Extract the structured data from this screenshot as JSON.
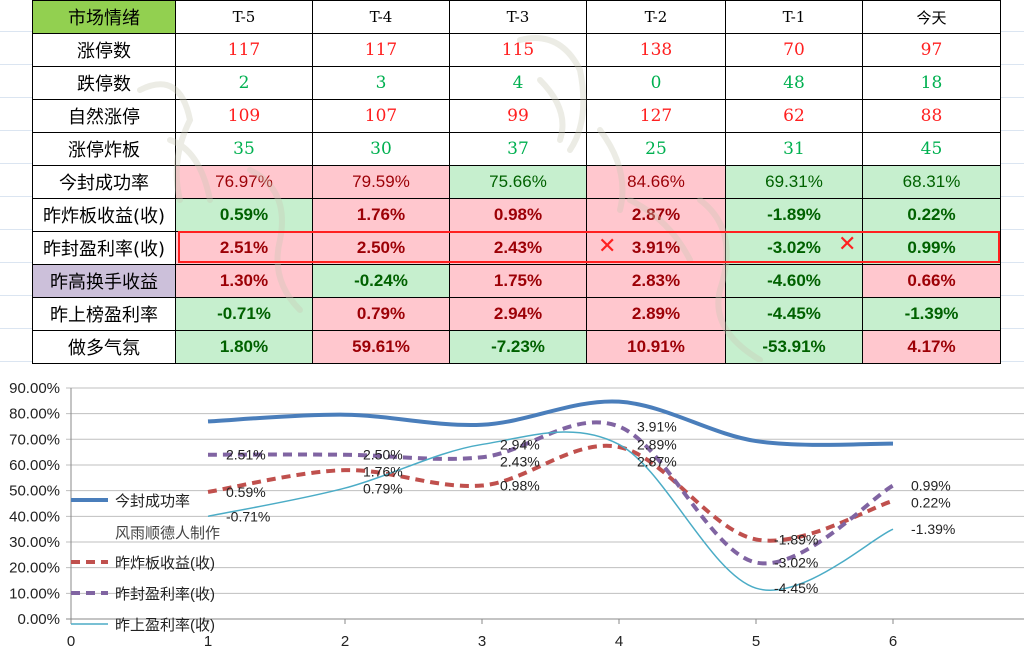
{
  "watermark": "风雨顺德人",
  "table": {
    "header": [
      "市场情绪",
      "T-5",
      "T-4",
      "T-3",
      "T-2",
      "T-1",
      "今天"
    ],
    "rows": [
      {
        "label": "涨停数",
        "style": "red",
        "values": [
          "117",
          "117",
          "115",
          "138",
          "70",
          "97"
        ]
      },
      {
        "label": "跌停数",
        "style": "grn",
        "values": [
          "2",
          "3",
          "4",
          "0",
          "48",
          "18"
        ]
      },
      {
        "label": "自然涨停",
        "style": "red",
        "values": [
          "109",
          "107",
          "99",
          "127",
          "62",
          "88"
        ]
      },
      {
        "label": "涨停炸板",
        "style": "grn",
        "values": [
          "35",
          "30",
          "37",
          "25",
          "31",
          "45"
        ]
      },
      {
        "label": "今封成功率",
        "bold": false,
        "values": [
          "76.97%",
          "79.59%",
          "75.66%",
          "84.66%",
          "69.31%",
          "68.31%"
        ],
        "colors": [
          "p",
          "p",
          "g",
          "p",
          "g",
          "g"
        ]
      },
      {
        "label": "昨炸板收益(收)",
        "values": [
          "0.59%",
          "1.76%",
          "0.98%",
          "2.87%",
          "-1.89%",
          "0.22%"
        ],
        "colors": [
          "g",
          "p",
          "p",
          "p",
          "g",
          "g"
        ]
      },
      {
        "label": "昨封盈利率(收)",
        "values": [
          "2.51%",
          "2.50%",
          "2.43%",
          "3.91%",
          "-3.02%",
          "0.99%"
        ],
        "colors": [
          "p",
          "p",
          "p",
          "p",
          "g",
          "g"
        ]
      },
      {
        "label": "昨高换手收益",
        "label_bg": "#ccc0da",
        "values": [
          "1.30%",
          "-0.24%",
          "1.75%",
          "2.83%",
          "-4.60%",
          "0.66%"
        ],
        "colors": [
          "p",
          "g",
          "p",
          "p",
          "g",
          "p"
        ]
      },
      {
        "label": "昨上榜盈利率",
        "values": [
          "-0.71%",
          "0.79%",
          "2.94%",
          "2.89%",
          "-4.45%",
          "-1.39%"
        ],
        "colors": [
          "g",
          "p",
          "p",
          "p",
          "g",
          "g"
        ]
      },
      {
        "label": "做多气氛",
        "values": [
          "1.80%",
          "59.61%",
          "-7.23%",
          "10.91%",
          "-53.91%",
          "4.17%"
        ],
        "colors": [
          "g",
          "p",
          "g",
          "p",
          "g",
          "p"
        ]
      }
    ],
    "marks": [
      "✕",
      "✕"
    ]
  },
  "chart_data": {
    "type": "line",
    "x": [
      1,
      2,
      3,
      4,
      5,
      6
    ],
    "xlim": [
      0,
      7
    ],
    "ylim": [
      0,
      90
    ],
    "xticks": [
      "0",
      "1",
      "2",
      "3",
      "4",
      "5",
      "6"
    ],
    "yticks": [
      "0.00%",
      "10.00%",
      "20.00%",
      "30.00%",
      "40.00%",
      "50.00%",
      "60.00%",
      "70.00%",
      "80.00%",
      "90.00%"
    ],
    "grid": true,
    "legend": "bottom-left",
    "credit": "风雨顺德人制作",
    "series": [
      {
        "name": "今封成功率",
        "color": "#4a7ebb",
        "width": 4,
        "dash": "",
        "values": [
          76.97,
          79.59,
          75.66,
          84.66,
          69.31,
          68.31
        ],
        "labels": []
      },
      {
        "name": "昨炸板收益(收)",
        "color": "#c0504d",
        "width": 4,
        "dash": "9,6",
        "values": [
          49.5,
          58,
          52,
          67,
          31,
          46
        ],
        "labels": [
          "0.59%",
          "1.76%",
          "0.98%",
          "2.87%",
          "-1.89%",
          "0.22%"
        ]
      },
      {
        "name": "昨封盈利率(收)",
        "color": "#8064a2",
        "width": 4,
        "dash": "9,6",
        "values": [
          64,
          64,
          63,
          75,
          22,
          52
        ],
        "labels": [
          "2.51%",
          "2.50%",
          "2.43%",
          "3.91%",
          "-3.02%",
          "0.99%"
        ]
      },
      {
        "name": "昨上盈利率(收)",
        "color": "#4bacc6",
        "width": 1.5,
        "dash": "",
        "values": [
          40,
          51,
          68,
          68,
          12,
          35
        ],
        "labels": [
          "-0.71%",
          "0.79%",
          "2.94%",
          "2.89%",
          "-4.45%",
          "-1.39%"
        ]
      }
    ]
  }
}
